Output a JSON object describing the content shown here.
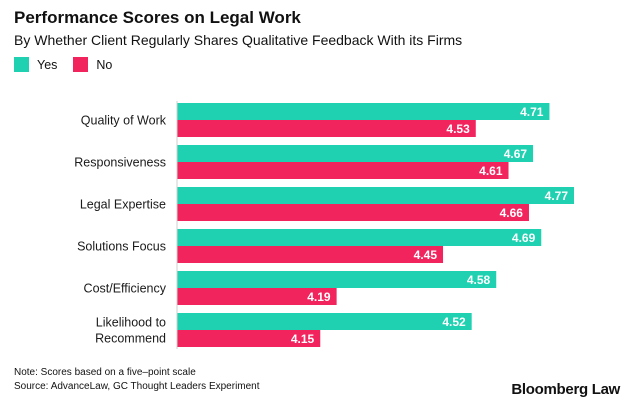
{
  "chart_data": {
    "type": "bar",
    "orientation": "horizontal",
    "title": "Performance Scores on Legal Work",
    "subtitle": "By Whether Client Regularly Shares Qualitative Feedback With its Firms",
    "categories": [
      [
        "Quality of Work"
      ],
      [
        "Responsiveness"
      ],
      [
        "Legal Expertise"
      ],
      [
        "Solutions Focus"
      ],
      [
        "Cost/Efficiency"
      ],
      [
        "Likelihood to",
        "Recommend"
      ]
    ],
    "series": [
      {
        "name": "Yes",
        "color": "#1fd1b0",
        "values": [
          4.71,
          4.67,
          4.77,
          4.69,
          4.58,
          4.52
        ]
      },
      {
        "name": "No",
        "color": "#f2245e",
        "values": [
          4.53,
          4.61,
          4.66,
          4.45,
          4.19,
          4.15
        ]
      }
    ],
    "xlim": [
      3.8,
      4.8
    ],
    "grid": false,
    "legend": "top-left"
  },
  "note": "Note: Scores based on a five–point scale",
  "source": "Source: AdvanceLaw, GC Thought Leaders Experiment",
  "brand": "Bloomberg Law"
}
